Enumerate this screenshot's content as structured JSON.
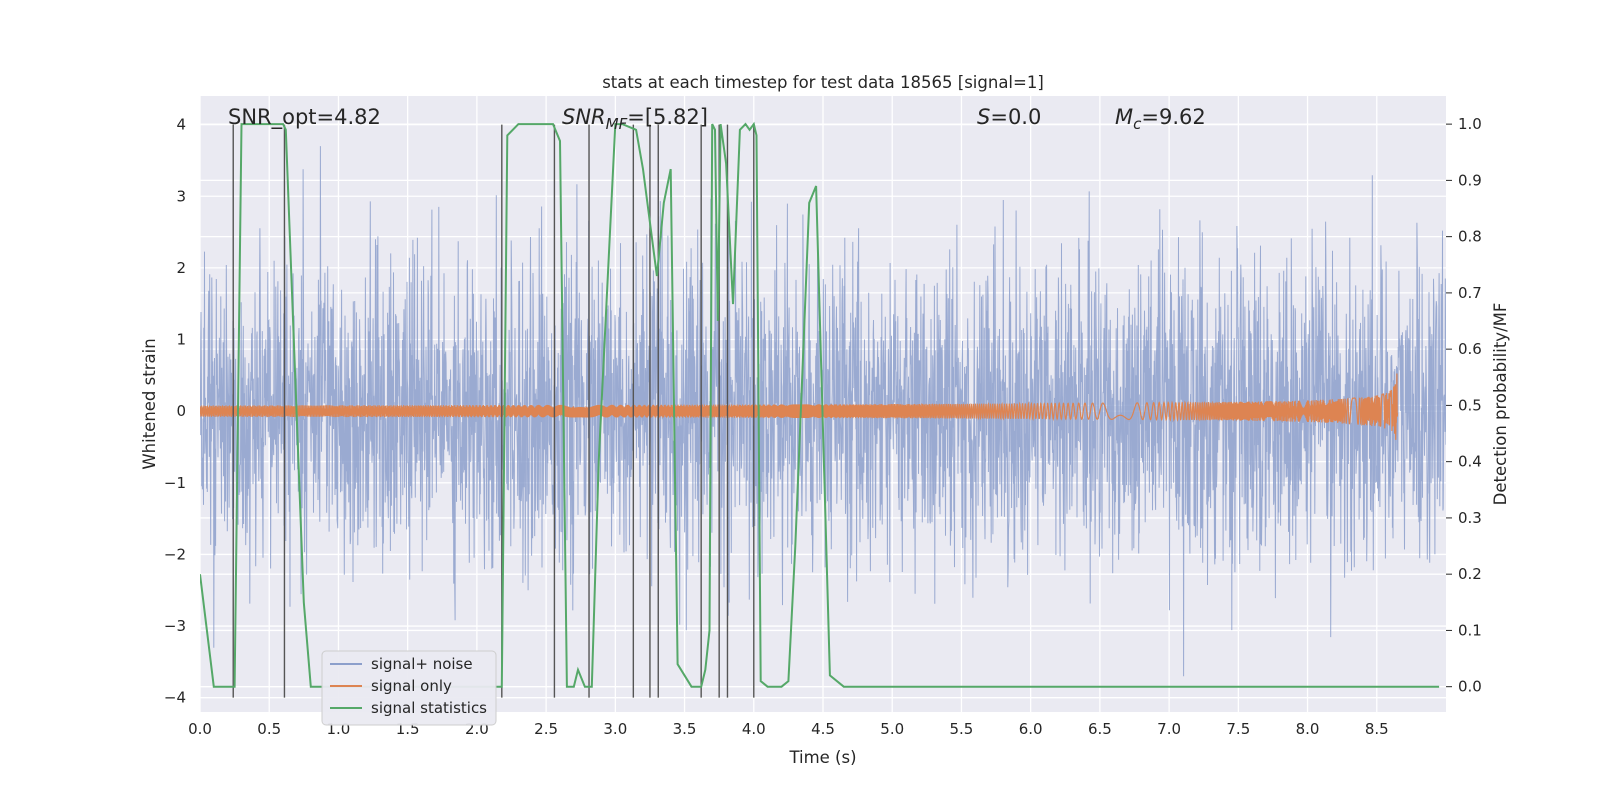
{
  "chart_data": {
    "type": "line",
    "title": "stats at each timestep for test data 18565 [signal=1]",
    "xlabel": "Time (s)",
    "ylabel": "Whitened strain",
    "ylabel_right": "Detection probability/MF",
    "xlim": [
      0.0,
      9.0
    ],
    "ylim": [
      -4.2,
      4.4
    ],
    "ylim_right": [
      -0.045,
      1.05
    ],
    "x_ticks": [
      "0.0",
      "0.5",
      "1.0",
      "1.5",
      "2.0",
      "2.5",
      "3.0",
      "3.5",
      "4.0",
      "4.5",
      "5.0",
      "5.5",
      "6.0",
      "6.5",
      "7.0",
      "7.5",
      "8.0",
      "8.5"
    ],
    "y_ticks": [
      "−4",
      "−3",
      "−2",
      "−1",
      "0",
      "1",
      "2",
      "3",
      "4"
    ],
    "y_ticks_right": [
      "0.0",
      "0.1",
      "0.2",
      "0.3",
      "0.4",
      "0.5",
      "0.6",
      "0.7",
      "0.8",
      "0.9",
      "1.0"
    ],
    "grid": true,
    "annotations": {
      "snr_opt": "SNR_opt=4.82",
      "snr_mf_base": "SNR",
      "snr_mf_sub": "MF",
      "snr_mf_value": "=[5.82]",
      "s_label": "S",
      "s_value": "=0.0",
      "mc_base": "M",
      "mc_sub": "c",
      "mc_value": "=9.62"
    },
    "legend": {
      "placement": "lower-left",
      "entries": [
        "signal+ noise",
        "signal only",
        "signal statistics"
      ]
    },
    "colors": {
      "noise": "#8c9fcb",
      "signal": "#dd8452",
      "stats": "#55a868",
      "markers": "#555555",
      "background": "#eaeaf2"
    },
    "series": [
      {
        "name": "signal+ noise",
        "description": "whitened strain noise, amplitude roughly +-2 with spikes to +-3.7",
        "x_range": [
          0.0,
          9.0
        ],
        "typical_amplitude": 1.4,
        "peak_amplitude": 3.7
      },
      {
        "name": "signal only",
        "description": "inspiral chirp with growing amplitude, merger near t=8.65 s",
        "merger_time": 8.65,
        "peak_amplitude": 0.72
      },
      {
        "name": "signal statistics",
        "axis": "right",
        "x": [
          0.0,
          0.05,
          0.1,
          0.25,
          0.3,
          0.6,
          0.62,
          0.75,
          0.8,
          2.18,
          2.22,
          2.3,
          2.55,
          2.6,
          2.65,
          2.7,
          2.73,
          2.78,
          2.83,
          2.88,
          3.0,
          3.05,
          3.15,
          3.2,
          3.3,
          3.35,
          3.4,
          3.45,
          3.55,
          3.58,
          3.62,
          3.65,
          3.68,
          3.7,
          3.72,
          3.74,
          3.76,
          3.8,
          3.85,
          3.9,
          3.94,
          3.97,
          4.0,
          4.02,
          4.05,
          4.1,
          4.2,
          4.25,
          4.3,
          4.35,
          4.4,
          4.45,
          4.55,
          4.65,
          5.0,
          6.0,
          7.0,
          8.0,
          8.5,
          8.95
        ],
        "values": [
          0.2,
          0.1,
          0.0,
          0.0,
          1.0,
          1.0,
          0.99,
          0.15,
          0.0,
          0.0,
          0.98,
          1.0,
          1.0,
          0.97,
          0.0,
          0.0,
          0.03,
          0.0,
          0.0,
          0.4,
          1.0,
          1.0,
          0.99,
          0.92,
          0.73,
          0.86,
          0.92,
          0.04,
          0.0,
          0.0,
          0.0,
          0.03,
          0.1,
          1.0,
          0.99,
          0.65,
          1.0,
          0.93,
          0.68,
          0.99,
          1.0,
          0.99,
          1.0,
          0.98,
          0.01,
          0.0,
          0.0,
          0.01,
          0.25,
          0.55,
          0.86,
          0.89,
          0.02,
          0.0,
          0.0,
          0.0,
          0.0,
          0.0,
          0.0,
          0.0
        ]
      }
    ],
    "marker_lines": [
      {
        "x": 0.24,
        "y0": -4.0,
        "y1": 4.0
      },
      {
        "x": 0.61,
        "y0": -4.0,
        "y1": 4.0
      },
      {
        "x": 2.18,
        "y0": -4.0,
        "y1": 4.0
      },
      {
        "x": 2.56,
        "y0": -4.0,
        "y1": 4.0
      },
      {
        "x": 2.81,
        "y0": -4.0,
        "y1": 4.0
      },
      {
        "x": 3.13,
        "y0": -4.0,
        "y1": 4.0
      },
      {
        "x": 3.25,
        "y0": -4.0,
        "y1": 4.0
      },
      {
        "x": 3.31,
        "y0": -4.0,
        "y1": 4.0
      },
      {
        "x": 3.62,
        "y0": -4.0,
        "y1": 4.0
      },
      {
        "x": 3.75,
        "y0": -4.0,
        "y1": 4.0
      },
      {
        "x": 3.81,
        "y0": -4.0,
        "y1": 4.0
      },
      {
        "x": 4.0,
        "y0": -4.0,
        "y1": 4.0
      }
    ]
  }
}
